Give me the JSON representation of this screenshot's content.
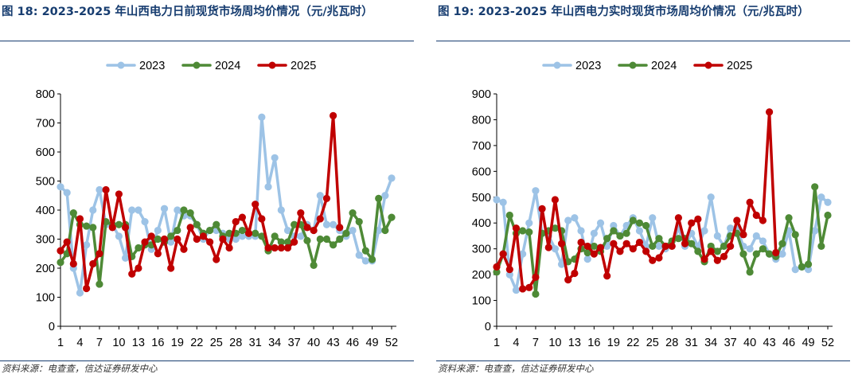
{
  "colors": {
    "2023": "#9dc3e6",
    "2024": "#4e8a36",
    "2025": "#c00000",
    "title": "#173d70",
    "axis": "#000000"
  },
  "figures": [
    {
      "title": "图 18:  2023-2025 年山西电力日前现货市场周均价情况（元/兆瓦时）",
      "source": "资料来源：电查查，信达证券研发中心"
    },
    {
      "title": "图 19:  2023-2025 年山西电力实时现货市场周均价情况（元/兆瓦时）",
      "source": "资料来源：电查查，信达证券研发中心"
    }
  ],
  "chart_data": [
    {
      "type": "line",
      "title": "图 18:  2023-2025 年山西电力日前现货市场周均价情况（元/兆瓦时）",
      "xlabel": "",
      "ylabel": "",
      "xlim": [
        1,
        52
      ],
      "ylim": [
        0,
        800
      ],
      "yticks": [
        0,
        100,
        200,
        300,
        400,
        500,
        600,
        700,
        800
      ],
      "xticks": [
        1,
        4,
        7,
        10,
        13,
        16,
        19,
        22,
        25,
        28,
        31,
        34,
        37,
        40,
        43,
        46,
        49,
        52
      ],
      "legend": "top-center",
      "grid": false,
      "series": [
        {
          "name": "2023",
          "x": [
            1,
            2,
            3,
            4,
            5,
            6,
            7,
            8,
            9,
            10,
            11,
            12,
            13,
            14,
            15,
            16,
            17,
            18,
            19,
            20,
            21,
            22,
            23,
            24,
            25,
            26,
            27,
            28,
            29,
            30,
            31,
            32,
            33,
            34,
            35,
            36,
            37,
            38,
            39,
            40,
            41,
            42,
            43,
            44,
            45,
            46,
            47,
            48,
            49,
            50,
            51,
            52
          ],
          "values": [
            480,
            460,
            200,
            115,
            280,
            400,
            470,
            350,
            350,
            310,
            235,
            400,
            400,
            360,
            265,
            330,
            405,
            290,
            400,
            380,
            380,
            350,
            300,
            330,
            330,
            320,
            300,
            300,
            310,
            310,
            310,
            720,
            480,
            580,
            400,
            330,
            310,
            310,
            350,
            330,
            450,
            350,
            350,
            330,
            310,
            330,
            245,
            225,
            225,
            330,
            450,
            510
          ]
        },
        {
          "name": "2024",
          "x": [
            1,
            2,
            3,
            4,
            5,
            6,
            7,
            8,
            9,
            10,
            11,
            12,
            13,
            14,
            15,
            16,
            17,
            18,
            19,
            20,
            21,
            22,
            23,
            24,
            25,
            26,
            27,
            28,
            29,
            30,
            31,
            32,
            33,
            34,
            35,
            36,
            37,
            38,
            39,
            40,
            41,
            42,
            43,
            44,
            45,
            46,
            47,
            48,
            49,
            50,
            51,
            52
          ],
          "values": [
            220,
            250,
            390,
            350,
            345,
            340,
            145,
            360,
            350,
            350,
            350,
            240,
            270,
            280,
            280,
            300,
            290,
            310,
            330,
            400,
            390,
            350,
            320,
            330,
            350,
            310,
            320,
            320,
            330,
            320,
            320,
            310,
            260,
            310,
            290,
            290,
            350,
            350,
            295,
            210,
            300,
            300,
            280,
            300,
            320,
            390,
            360,
            260,
            230,
            440,
            330,
            375
          ]
        },
        {
          "name": "2025",
          "x": [
            1,
            2,
            3,
            4,
            5,
            6,
            7,
            8,
            9,
            10,
            11,
            12,
            13,
            14,
            15,
            16,
            17,
            18,
            19,
            20,
            21,
            22,
            23,
            24,
            25,
            26,
            27,
            28,
            29,
            30,
            31,
            32,
            33,
            34,
            35,
            36,
            37,
            38,
            39,
            40,
            41,
            42,
            43,
            44
          ],
          "values": [
            260,
            290,
            215,
            370,
            130,
            215,
            250,
            470,
            340,
            455,
            340,
            180,
            200,
            290,
            310,
            250,
            300,
            200,
            300,
            265,
            340,
            300,
            310,
            290,
            230,
            300,
            270,
            360,
            375,
            320,
            420,
            370,
            270,
            270,
            270,
            270,
            290,
            390,
            340,
            330,
            370,
            440,
            725,
            340
          ]
        }
      ]
    },
    {
      "type": "line",
      "title": "图 19:  2023-2025 年山西电力实时现货市场周均价情况（元/兆瓦时）",
      "xlabel": "",
      "ylabel": "",
      "xlim": [
        1,
        52
      ],
      "ylim": [
        0,
        900
      ],
      "yticks": [
        0,
        100,
        200,
        300,
        400,
        500,
        600,
        700,
        800,
        900
      ],
      "xticks": [
        1,
        4,
        7,
        10,
        13,
        16,
        19,
        22,
        25,
        28,
        31,
        34,
        37,
        40,
        43,
        46,
        49,
        52
      ],
      "legend": "top-center",
      "grid": false,
      "series": [
        {
          "name": "2023",
          "x": [
            1,
            2,
            3,
            4,
            5,
            6,
            7,
            8,
            9,
            10,
            11,
            12,
            13,
            14,
            15,
            16,
            17,
            18,
            19,
            20,
            21,
            22,
            23,
            24,
            25,
            26,
            27,
            28,
            29,
            30,
            31,
            32,
            33,
            34,
            35,
            36,
            37,
            38,
            39,
            40,
            41,
            42,
            43,
            44,
            45,
            46,
            47,
            48,
            49,
            50,
            51,
            52
          ],
          "values": [
            490,
            480,
            200,
            140,
            280,
            400,
            525,
            360,
            350,
            300,
            240,
            410,
            420,
            370,
            260,
            360,
            400,
            310,
            390,
            350,
            390,
            420,
            370,
            310,
            420,
            310,
            300,
            310,
            380,
            310,
            360,
            310,
            370,
            500,
            350,
            310,
            380,
            380,
            310,
            300,
            350,
            330,
            280,
            260,
            280,
            370,
            220,
            230,
            220,
            370,
            500,
            480
          ]
        },
        {
          "name": "2024",
          "x": [
            1,
            2,
            3,
            4,
            5,
            6,
            7,
            8,
            9,
            10,
            11,
            12,
            13,
            14,
            15,
            16,
            17,
            18,
            19,
            20,
            21,
            22,
            23,
            24,
            25,
            26,
            27,
            28,
            29,
            30,
            31,
            32,
            33,
            34,
            35,
            36,
            37,
            38,
            39,
            40,
            41,
            42,
            43,
            44,
            45,
            46,
            47,
            48,
            49,
            50,
            51,
            52
          ],
          "values": [
            210,
            280,
            430,
            360,
            370,
            365,
            125,
            360,
            370,
            380,
            370,
            250,
            260,
            300,
            285,
            310,
            290,
            340,
            370,
            350,
            360,
            410,
            400,
            390,
            310,
            340,
            310,
            330,
            340,
            340,
            320,
            290,
            250,
            310,
            290,
            310,
            350,
            360,
            280,
            210,
            280,
            300,
            280,
            270,
            320,
            420,
            355,
            230,
            240,
            540,
            310,
            430
          ]
        },
        {
          "name": "2025",
          "x": [
            1,
            2,
            3,
            4,
            5,
            6,
            7,
            8,
            9,
            10,
            11,
            12,
            13,
            14,
            15,
            16,
            17,
            18,
            19,
            20,
            21,
            22,
            23,
            24,
            25,
            26,
            27,
            28,
            29,
            30,
            31,
            32,
            33,
            34,
            35,
            36,
            37,
            38,
            39,
            40,
            41,
            42,
            43,
            44
          ],
          "values": [
            230,
            280,
            220,
            380,
            145,
            150,
            190,
            455,
            305,
            490,
            320,
            180,
            205,
            325,
            310,
            280,
            305,
            195,
            320,
            290,
            320,
            300,
            325,
            290,
            255,
            265,
            310,
            310,
            420,
            320,
            400,
            415,
            260,
            290,
            255,
            270,
            310,
            410,
            355,
            480,
            430,
            410,
            830,
            285
          ]
        }
      ]
    }
  ]
}
